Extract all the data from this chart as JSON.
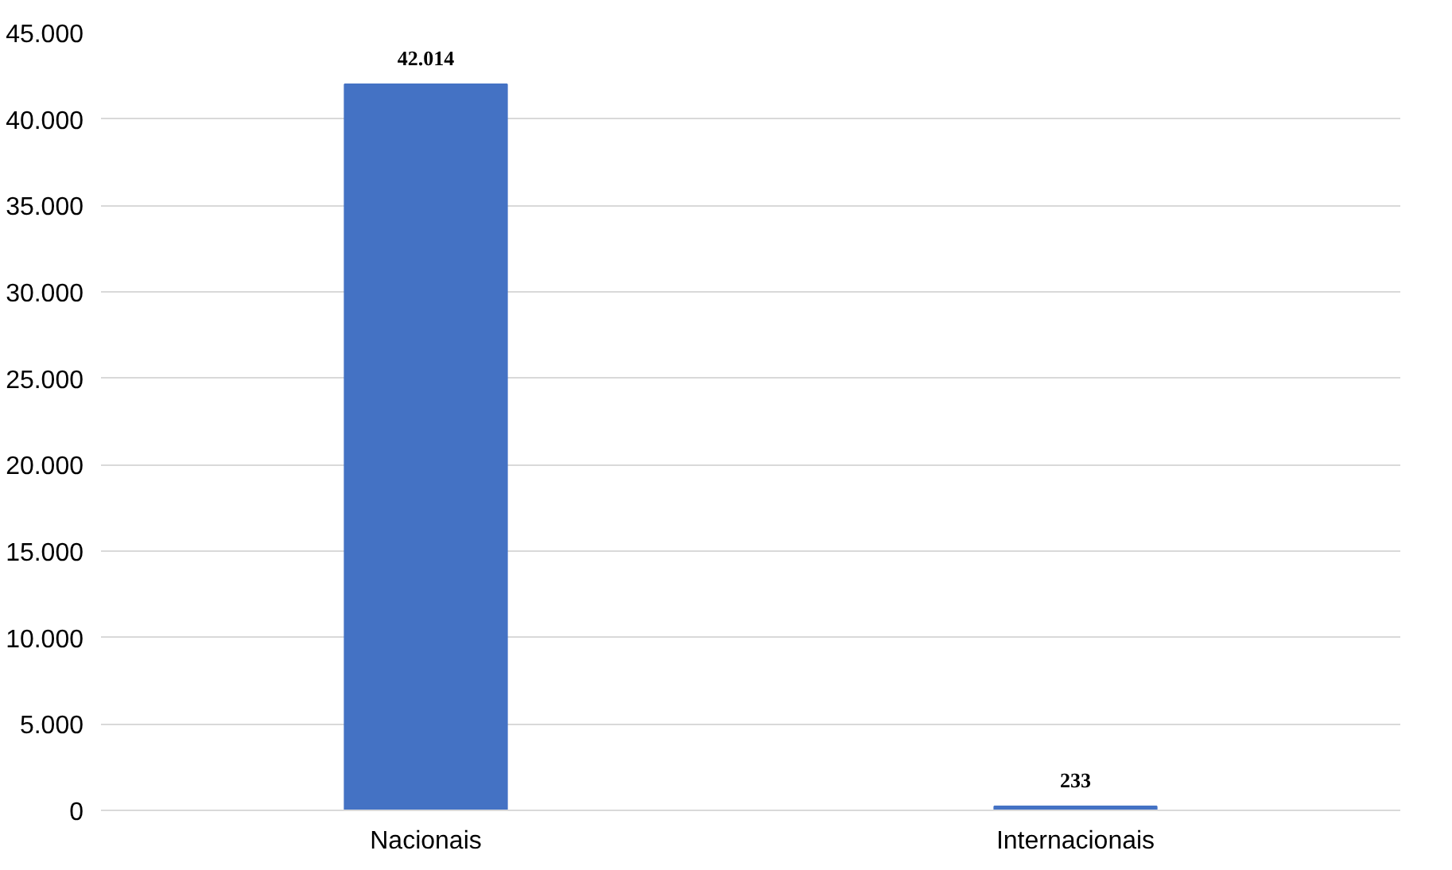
{
  "chart_data": {
    "type": "bar",
    "categories": [
      "Nacionais",
      "Internacionais"
    ],
    "values": [
      42014,
      233
    ],
    "value_labels": [
      "42.014",
      "233"
    ],
    "color": "#4472c4",
    "ylim": [
      0,
      45000
    ],
    "yticks": [
      0,
      {
        "value": 5000,
        "label": "5.000"
      },
      {
        "value": 10000,
        "label": "10.000"
      },
      {
        "value": 15000,
        "label": "15.000"
      },
      {
        "value": 20000,
        "label": "20.000"
      },
      {
        "value": 25000,
        "label": "25.000"
      },
      {
        "value": 30000,
        "label": "30.000"
      },
      {
        "value": 35000,
        "label": "35.000"
      },
      {
        "value": 40000,
        "label": "40.000"
      },
      {
        "value": 45000,
        "label": "45.000"
      }
    ],
    "grid": "y"
  }
}
